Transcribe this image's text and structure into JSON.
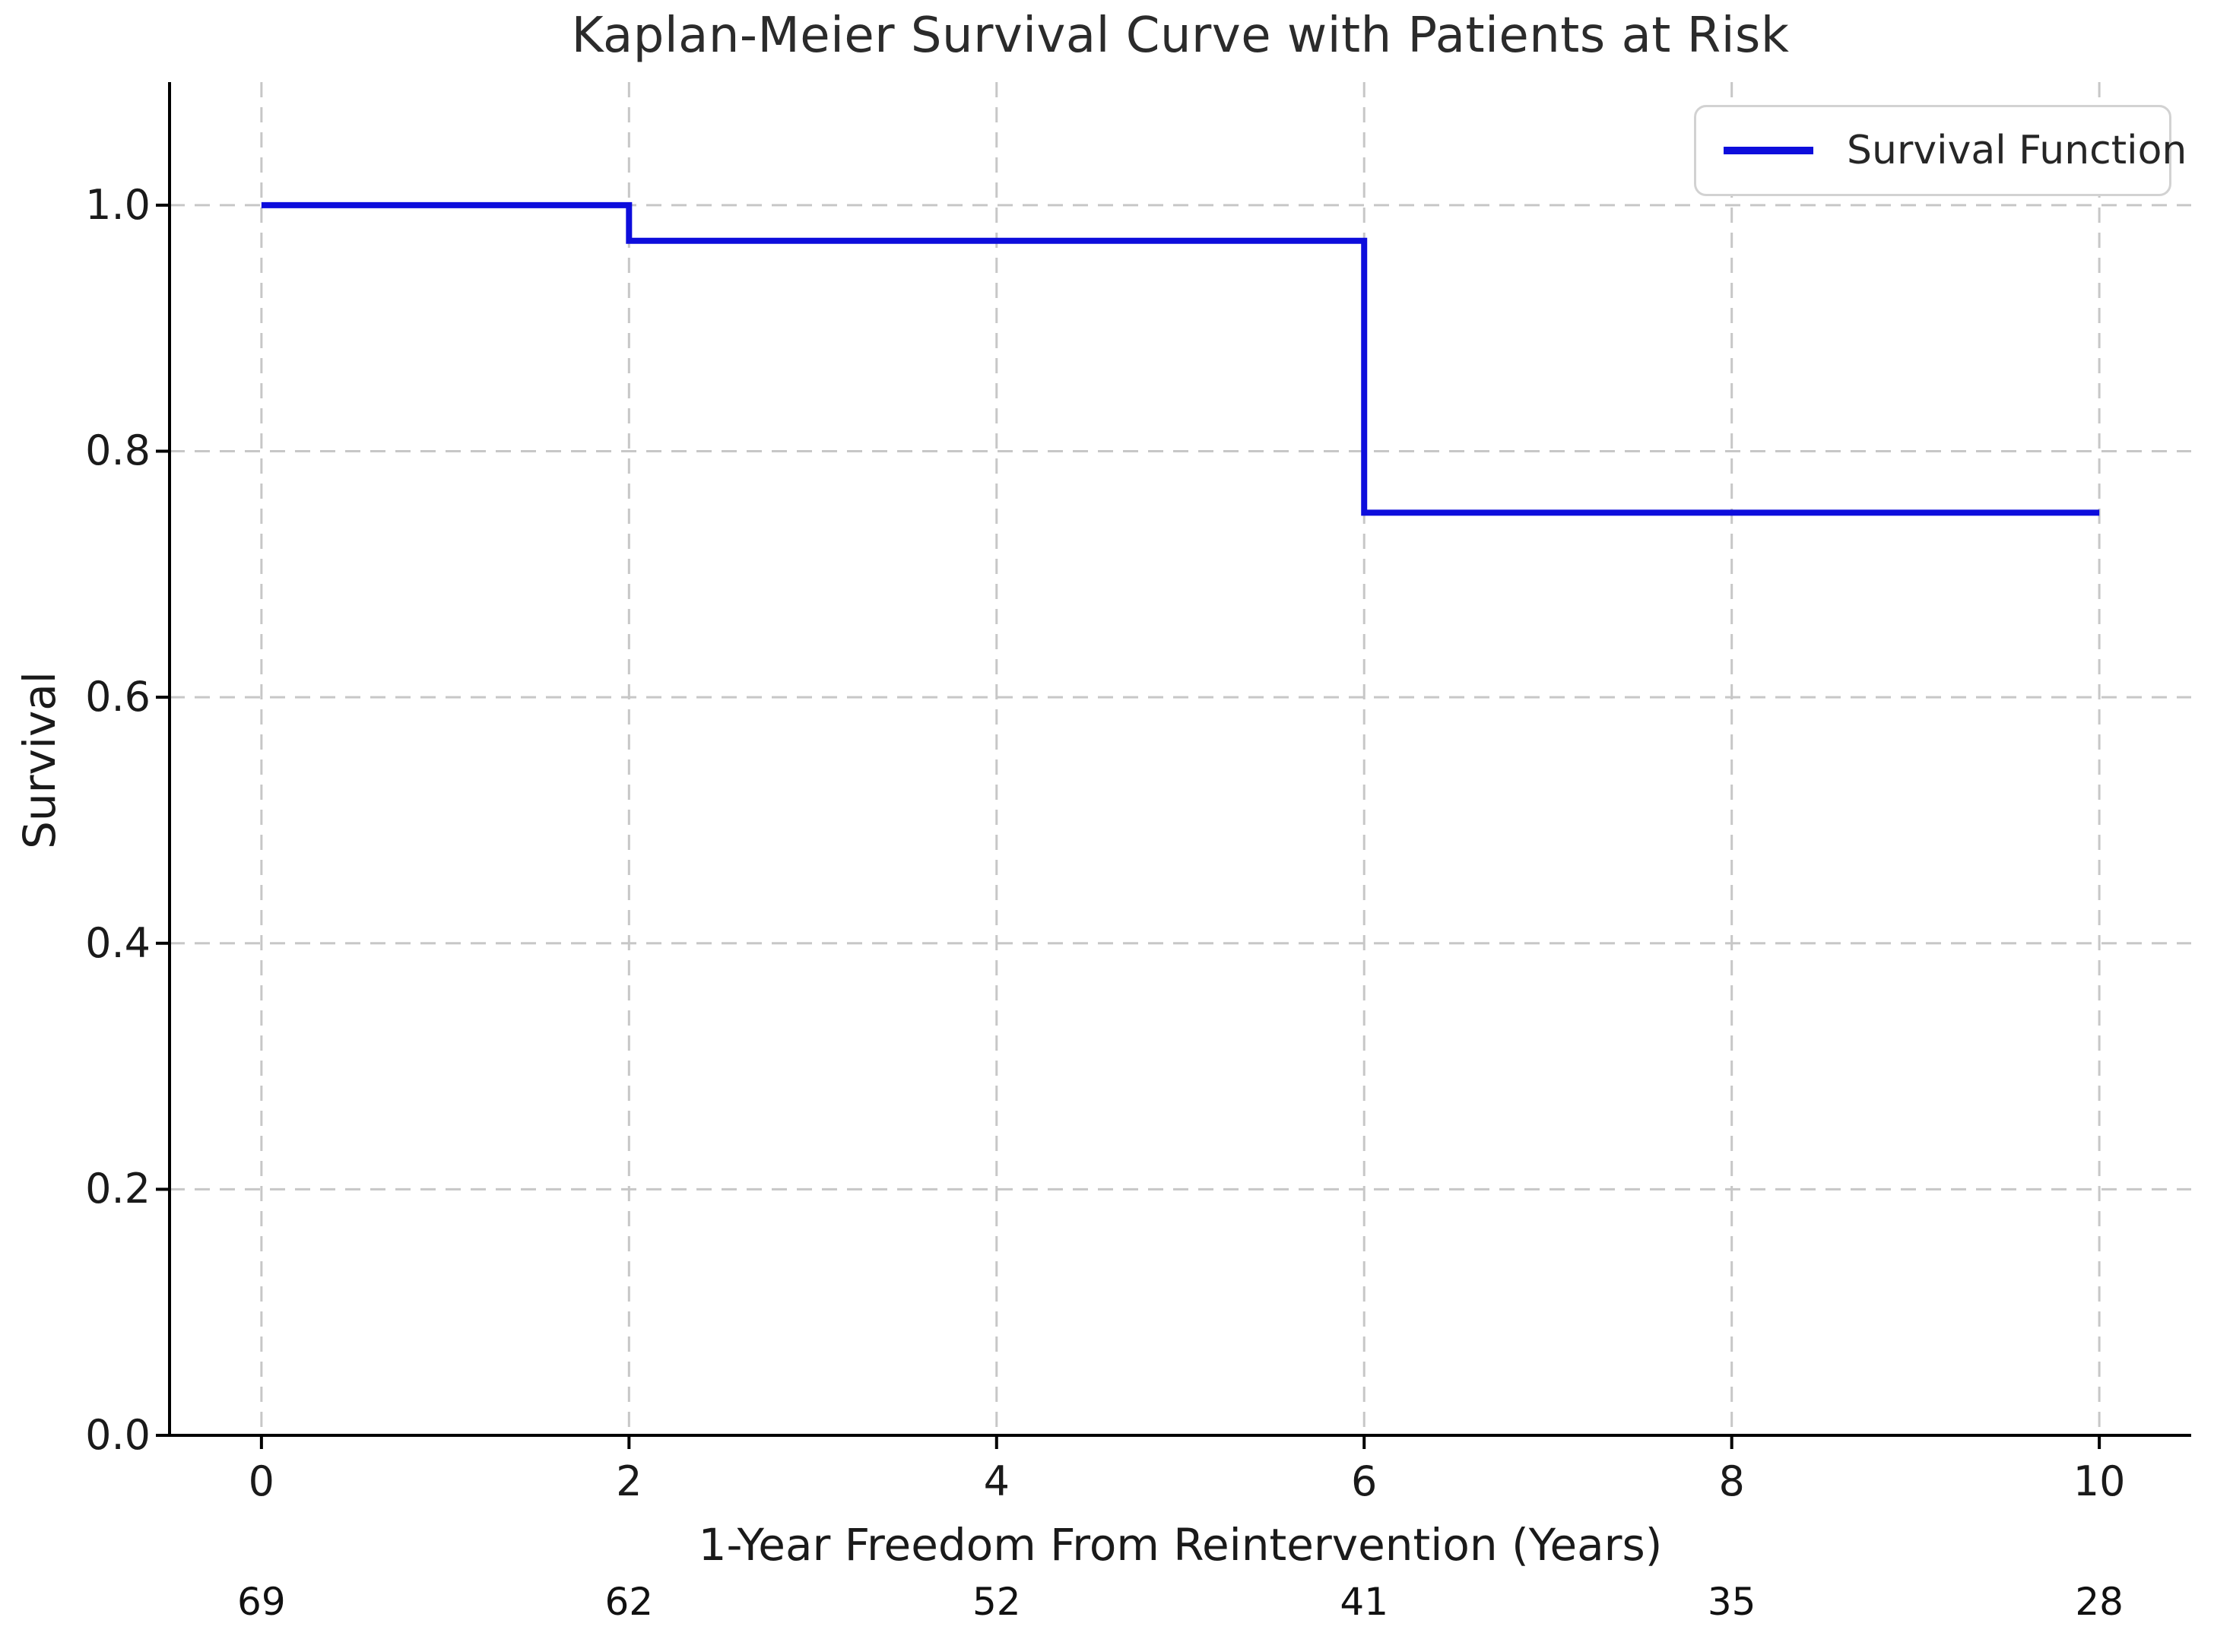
{
  "chart_data": {
    "type": "line",
    "subtype": "kaplan-meier-step",
    "title": "Kaplan-Meier Survival Curve with Patients at Risk",
    "xlabel": "1-Year Freedom From Reintervention (Years)",
    "ylabel": "Survival",
    "xlim": [
      -0.5,
      10.5
    ],
    "ylim": [
      0,
      1.1
    ],
    "xticks": [
      0,
      2,
      4,
      6,
      8,
      10
    ],
    "yticks": [
      0.0,
      0.2,
      0.4,
      0.6,
      0.8,
      1.0
    ],
    "grid": true,
    "legend_position": "upper right",
    "legend": {
      "label": "Survival Function"
    },
    "series": [
      {
        "name": "Survival Function",
        "type": "step-post",
        "points": [
          [
            0,
            1.0
          ],
          [
            2,
            1.0
          ],
          [
            2,
            0.971
          ],
          [
            6,
            0.971
          ],
          [
            6,
            0.75
          ],
          [
            10,
            0.75
          ]
        ]
      }
    ],
    "at_risk": {
      "times": [
        0,
        2,
        4,
        6,
        8,
        10
      ],
      "counts": [
        69,
        62,
        52,
        41,
        35,
        28
      ]
    },
    "colors": {
      "line": "#0d0ddc",
      "grid": "#c7c7c7",
      "spine": "#000000",
      "text": "#1a1a1a"
    }
  }
}
